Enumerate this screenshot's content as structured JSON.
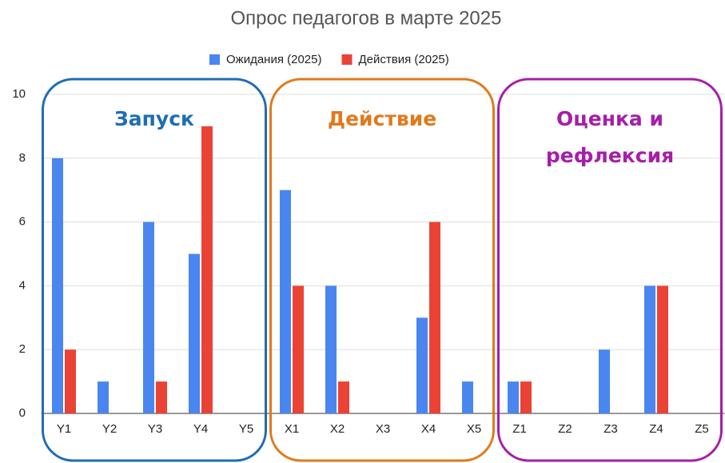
{
  "chart_data": {
    "type": "bar",
    "title": "Опрос педагогов в марте 2025",
    "categories": [
      "Y1",
      "Y2",
      "Y3",
      "Y4",
      "Y5",
      "X1",
      "X2",
      "X3",
      "X4",
      "X5",
      "Z1",
      "Z2",
      "Z3",
      "Z4",
      "Z5"
    ],
    "series": [
      {
        "name": "Ожидания (2025)",
        "color": "#4a86f0",
        "values": [
          8,
          1,
          6,
          5,
          0,
          7,
          4,
          0,
          3,
          1,
          1,
          0,
          2,
          4,
          0
        ]
      },
      {
        "name": "Действия (2025)",
        "color": "#ea4335",
        "values": [
          2,
          0,
          1,
          9,
          0,
          4,
          1,
          0,
          6,
          0,
          1,
          0,
          0,
          4,
          0
        ]
      }
    ],
    "ylim": [
      0,
      10
    ],
    "yticks": [
      0,
      2,
      4,
      6,
      8,
      10
    ],
    "grid": true,
    "legend": "top",
    "annotations": [
      {
        "lines": [
          "Запуск"
        ],
        "color": "#1f6db5"
      },
      {
        "lines": [
          "Действие"
        ],
        "color": "#e07a1c"
      },
      {
        "lines": [
          "Оценка и",
          "рефлексия"
        ],
        "color": "#a51fa8"
      }
    ]
  }
}
